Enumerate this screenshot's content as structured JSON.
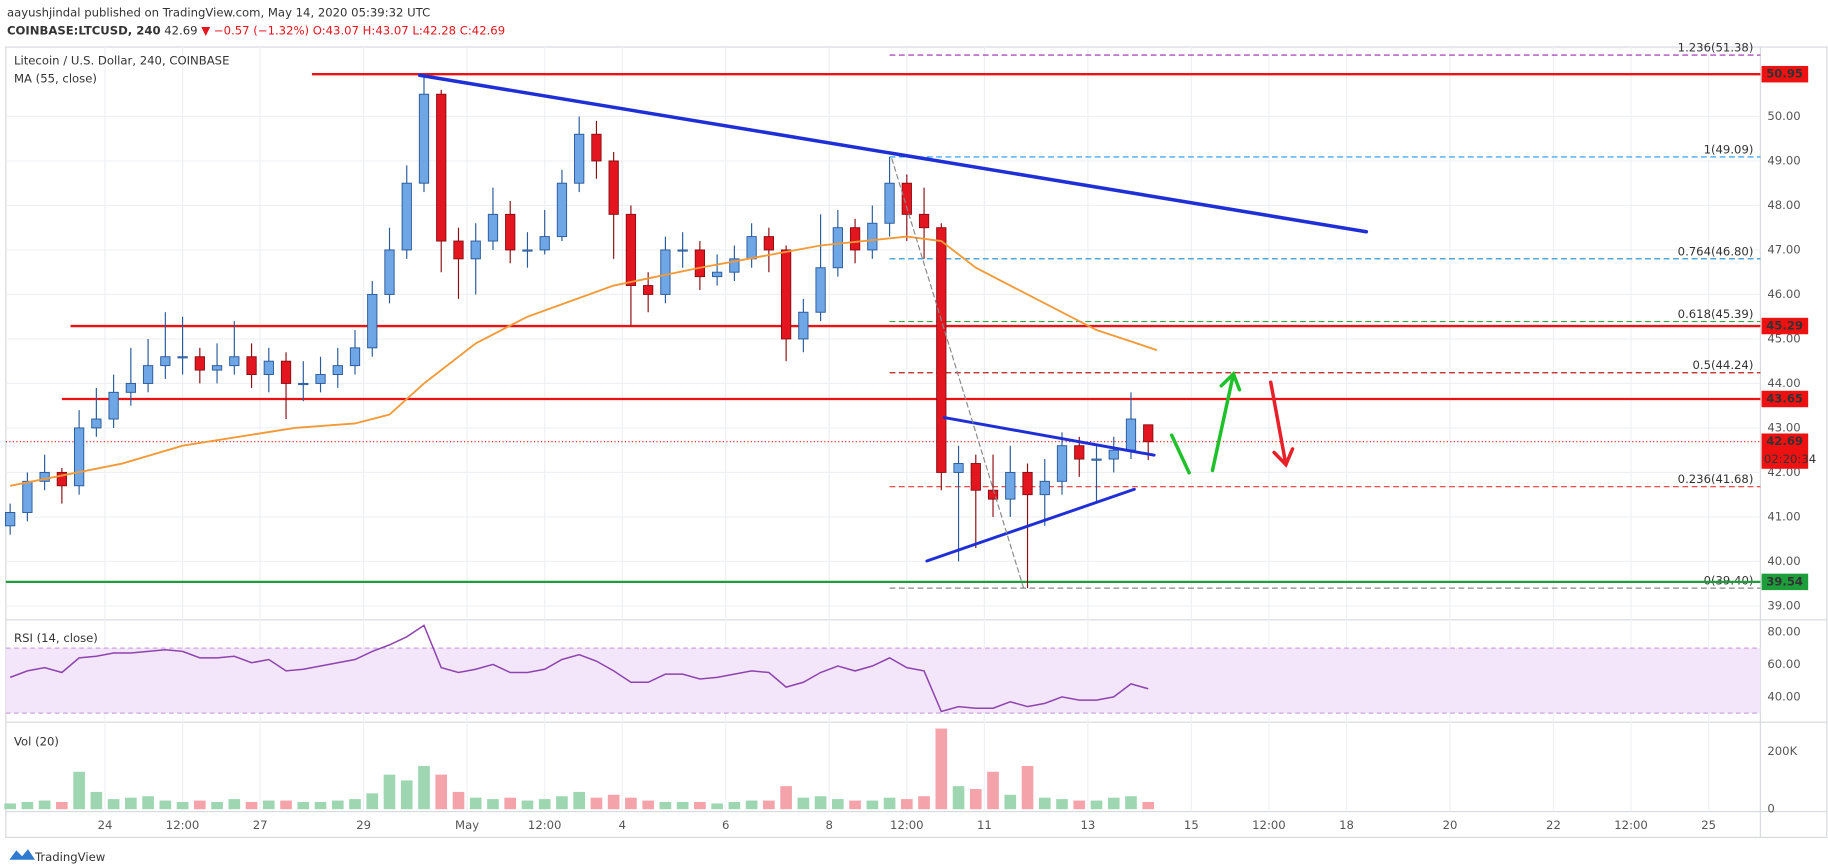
{
  "header": {
    "publisher": "aayushjindal published on TradingView.com, May 14, 2020 05:39:32 UTC",
    "symbol": "COINBASE:LTCUSD, 240",
    "last": "42.69",
    "change": "▼ −0.57 (−1.32%)",
    "ohlc": "O:43.07 H:43.07 L:42.28 C:42.69"
  },
  "footer": "TradingView",
  "chart_data": [
    {
      "type": "candlestick",
      "title": "Litecoin / U.S. Dollar, 240, COINBASE",
      "x": [
        0,
        2,
        4,
        6,
        8,
        10,
        12,
        14,
        16,
        18,
        20,
        22,
        24,
        26,
        28,
        30,
        32,
        34,
        36,
        38,
        40,
        42,
        44,
        46,
        48,
        50,
        52,
        54,
        56,
        58,
        60,
        62,
        64,
        66,
        68,
        70,
        72,
        74,
        76,
        78,
        80,
        82,
        84,
        86,
        88,
        90,
        92,
        94,
        96,
        98,
        100,
        102,
        104,
        106,
        108,
        110,
        112,
        114,
        116,
        118,
        120,
        122,
        124,
        126,
        128,
        130,
        132
      ],
      "open": [
        40.8,
        41.1,
        41.8,
        42.0,
        41.7,
        43.0,
        43.2,
        43.8,
        44.0,
        44.4,
        44.6,
        44.6,
        44.3,
        44.4,
        44.6,
        44.2,
        44.5,
        44.0,
        44.0,
        44.2,
        44.4,
        44.8,
        46.0,
        47.0,
        48.5,
        50.5,
        47.2,
        46.8,
        47.2,
        47.8,
        47.0,
        47.0,
        47.3,
        48.5,
        49.6,
        49.0,
        47.8,
        46.2,
        46.0,
        47.0,
        47.0,
        46.4,
        46.5,
        46.8,
        47.3,
        47.0,
        45.0,
        45.6,
        46.6,
        47.5,
        47.0,
        47.6,
        48.5,
        47.8,
        47.5,
        42.0,
        42.2,
        41.6,
        41.4,
        42.0,
        41.5,
        41.8,
        42.6,
        42.3,
        42.3,
        42.5,
        43.07
      ],
      "high": [
        41.3,
        42.0,
        42.4,
        42.1,
        43.4,
        43.9,
        44.2,
        44.8,
        45.0,
        45.6,
        45.5,
        44.8,
        44.9,
        45.4,
        44.9,
        44.8,
        44.7,
        44.5,
        44.6,
        44.8,
        45.2,
        46.3,
        47.5,
        48.9,
        50.95,
        50.6,
        47.5,
        47.6,
        48.4,
        48.1,
        47.4,
        47.9,
        48.8,
        50.0,
        49.9,
        49.2,
        48.0,
        46.5,
        47.3,
        47.4,
        47.2,
        46.9,
        47.1,
        47.6,
        47.5,
        47.1,
        45.9,
        47.8,
        47.9,
        47.7,
        48.0,
        49.09,
        48.7,
        48.4,
        47.6,
        42.6,
        42.4,
        42.4,
        42.6,
        42.2,
        42.3,
        42.9,
        42.8,
        42.6,
        42.8,
        43.8,
        43.07
      ],
      "low": [
        40.6,
        40.9,
        41.6,
        41.3,
        41.5,
        42.8,
        43.0,
        43.5,
        43.8,
        44.1,
        44.2,
        44.0,
        44.0,
        44.2,
        43.9,
        43.8,
        43.2,
        43.6,
        43.8,
        43.9,
        44.2,
        44.6,
        45.8,
        46.8,
        48.3,
        46.5,
        45.9,
        46.0,
        47.0,
        46.7,
        46.6,
        46.9,
        47.2,
        48.3,
        48.6,
        46.8,
        45.3,
        45.6,
        45.8,
        46.6,
        46.1,
        46.2,
        46.3,
        46.6,
        46.5,
        44.5,
        44.7,
        45.4,
        46.4,
        46.7,
        46.8,
        47.3,
        47.2,
        46.8,
        41.6,
        40.0,
        40.3,
        41.0,
        41.0,
        39.4,
        40.8,
        41.5,
        41.9,
        41.3,
        42.0,
        42.3,
        42.28
      ],
      "close": [
        41.1,
        41.8,
        42.0,
        41.7,
        43.0,
        43.2,
        43.8,
        44.0,
        44.4,
        44.6,
        44.6,
        44.3,
        44.4,
        44.6,
        44.2,
        44.5,
        44.0,
        44.0,
        44.2,
        44.4,
        44.8,
        46.0,
        47.0,
        48.5,
        50.5,
        47.2,
        46.8,
        47.2,
        47.8,
        47.0,
        47.0,
        47.3,
        48.5,
        49.6,
        49.0,
        47.8,
        46.2,
        46.0,
        47.0,
        47.0,
        46.4,
        46.5,
        46.8,
        47.3,
        47.0,
        45.0,
        45.6,
        46.6,
        47.5,
        47.0,
        47.6,
        48.5,
        47.8,
        47.5,
        42.0,
        42.2,
        41.6,
        41.4,
        42.0,
        41.5,
        41.8,
        42.6,
        42.3,
        42.3,
        42.5,
        43.2,
        42.69
      ],
      "up_color": "#6ea6e6",
      "down_color": "#e3161f",
      "xlim": [
        -0.5,
        203
      ],
      "xticks": [
        {
          "value": 11,
          "label": "24"
        },
        {
          "value": 20,
          "label": "12:00"
        },
        {
          "value": 29,
          "label": "27"
        },
        {
          "value": 41,
          "label": "29"
        },
        {
          "value": 53,
          "label": "May"
        },
        {
          "value": 62,
          "label": "12:00"
        },
        {
          "value": 71,
          "label": "4"
        },
        {
          "value": 83,
          "label": "6"
        },
        {
          "value": 95,
          "label": "8"
        },
        {
          "value": 104,
          "label": "12:00"
        },
        {
          "value": 113,
          "label": "11"
        },
        {
          "value": 125,
          "label": "13"
        },
        {
          "value": 137,
          "label": "15"
        },
        {
          "value": 146,
          "label": "12:00"
        },
        {
          "value": 155,
          "label": "18"
        },
        {
          "value": 167,
          "label": "20"
        },
        {
          "value": 179,
          "label": "22"
        },
        {
          "value": 188,
          "label": "12:00"
        },
        {
          "value": 197,
          "label": "25"
        }
      ],
      "ylim": [
        38.74,
        51.56
      ],
      "yticks": [
        {
          "value": 39,
          "label": "39.00"
        },
        {
          "value": 40,
          "label": "40.00"
        },
        {
          "value": 41,
          "label": "41.00"
        },
        {
          "value": 42,
          "label": "42.00"
        },
        {
          "value": 43,
          "label": "43.00"
        },
        {
          "value": 44,
          "label": "44.00"
        },
        {
          "value": 45,
          "label": "45.00"
        },
        {
          "value": 46,
          "label": "46.00"
        },
        {
          "value": 47,
          "label": "47.00"
        },
        {
          "value": 48,
          "label": "48.00"
        },
        {
          "value": 49,
          "label": "49.00"
        },
        {
          "value": 50,
          "label": "50.00"
        }
      ],
      "grid": true,
      "overlays": [
        {
          "name": "MA (55, close)",
          "color": "#f29a38",
          "x": [
            0,
            13,
            20,
            33,
            40,
            44,
            48,
            54,
            60,
            70,
            80,
            94,
            104,
            108,
            112,
            118,
            126,
            133
          ],
          "values": [
            41.7,
            42.2,
            42.6,
            43.0,
            43.1,
            43.3,
            44.0,
            44.9,
            45.5,
            46.2,
            46.6,
            47.1,
            47.3,
            47.2,
            46.6,
            46.0,
            45.2,
            44.75
          ]
        }
      ],
      "levels": [
        {
          "value": 50.95,
          "start": 35,
          "color": "#ee1111"
        },
        {
          "value": 45.29,
          "start": 7,
          "color": "#ee1111"
        },
        {
          "value": 43.65,
          "start": 6,
          "color": "#ee1111"
        },
        {
          "value": 39.54,
          "start": -0.5,
          "color": "#1e9e3a"
        }
      ],
      "last": {
        "value": 42.69,
        "countdown": "02:20:34",
        "color": "#ee1111"
      },
      "fib": {
        "start": 102,
        "levels": [
          {
            "label": "1.236(51.38)",
            "value": 51.38,
            "color": "#9c27b0"
          },
          {
            "label": "1(49.09)",
            "value": 49.09,
            "color": "#2196f3"
          },
          {
            "label": "0.764(46.80)",
            "value": 46.8,
            "color": "#1e88c5"
          },
          {
            "label": "0.618(45.39)",
            "value": 45.39,
            "color": "#3aa64a"
          },
          {
            "label": "0.5(44.24)",
            "value": 44.24,
            "color": "#b71c1c"
          },
          {
            "label": "0.236(41.68)",
            "value": 41.68,
            "color": "#e53935"
          },
          {
            "label": "0(39.40)",
            "value": 39.4,
            "color": "#888888"
          }
        ]
      }
    },
    {
      "type": "line",
      "title": "RSI (14, close)",
      "color": "#8e44ad",
      "values": [
        52,
        56,
        58,
        55,
        64,
        65,
        67,
        67,
        68,
        69,
        68,
        64,
        64,
        65,
        61,
        63,
        56,
        57,
        59,
        61,
        63,
        68,
        72,
        77,
        84,
        58,
        55,
        57,
        60,
        55,
        55,
        57,
        63,
        66,
        62,
        56,
        49,
        49,
        54,
        54,
        51,
        52,
        54,
        56,
        55,
        46,
        49,
        55,
        59,
        56,
        59,
        64,
        58,
        56,
        31,
        34,
        33,
        33,
        37,
        34,
        36,
        40,
        38,
        38,
        40,
        48,
        45
      ],
      "ylim": [
        25.9,
        86.7
      ],
      "yticks": [
        {
          "value": 40,
          "label": "40.00"
        },
        {
          "value": 60,
          "label": "60.00"
        },
        {
          "value": 80,
          "label": "80.00"
        }
      ],
      "band": [
        30,
        70
      ]
    },
    {
      "type": "bar",
      "title": "Vol (20)",
      "values": [
        20000,
        25000,
        30000,
        25000,
        130000,
        60000,
        35000,
        40000,
        45000,
        30000,
        25000,
        30000,
        25000,
        35000,
        25000,
        30000,
        30000,
        25000,
        25000,
        30000,
        35000,
        55000,
        120000,
        100000,
        150000,
        120000,
        60000,
        40000,
        35000,
        40000,
        30000,
        35000,
        45000,
        60000,
        40000,
        50000,
        40000,
        30000,
        25000,
        25000,
        25000,
        20000,
        25000,
        30000,
        30000,
        80000,
        40000,
        45000,
        35000,
        30000,
        30000,
        40000,
        35000,
        45000,
        280000,
        80000,
        70000,
        130000,
        50000,
        150000,
        40000,
        35000,
        30000,
        30000,
        40000,
        45000,
        25000
      ],
      "up_color": "#9ed6b2",
      "down_color": "#f4a3aa",
      "ylim": [
        0,
        290000
      ],
      "yticks": [
        0,
        {
          "value": 200000,
          "label": "200K"
        }
      ]
    }
  ]
}
